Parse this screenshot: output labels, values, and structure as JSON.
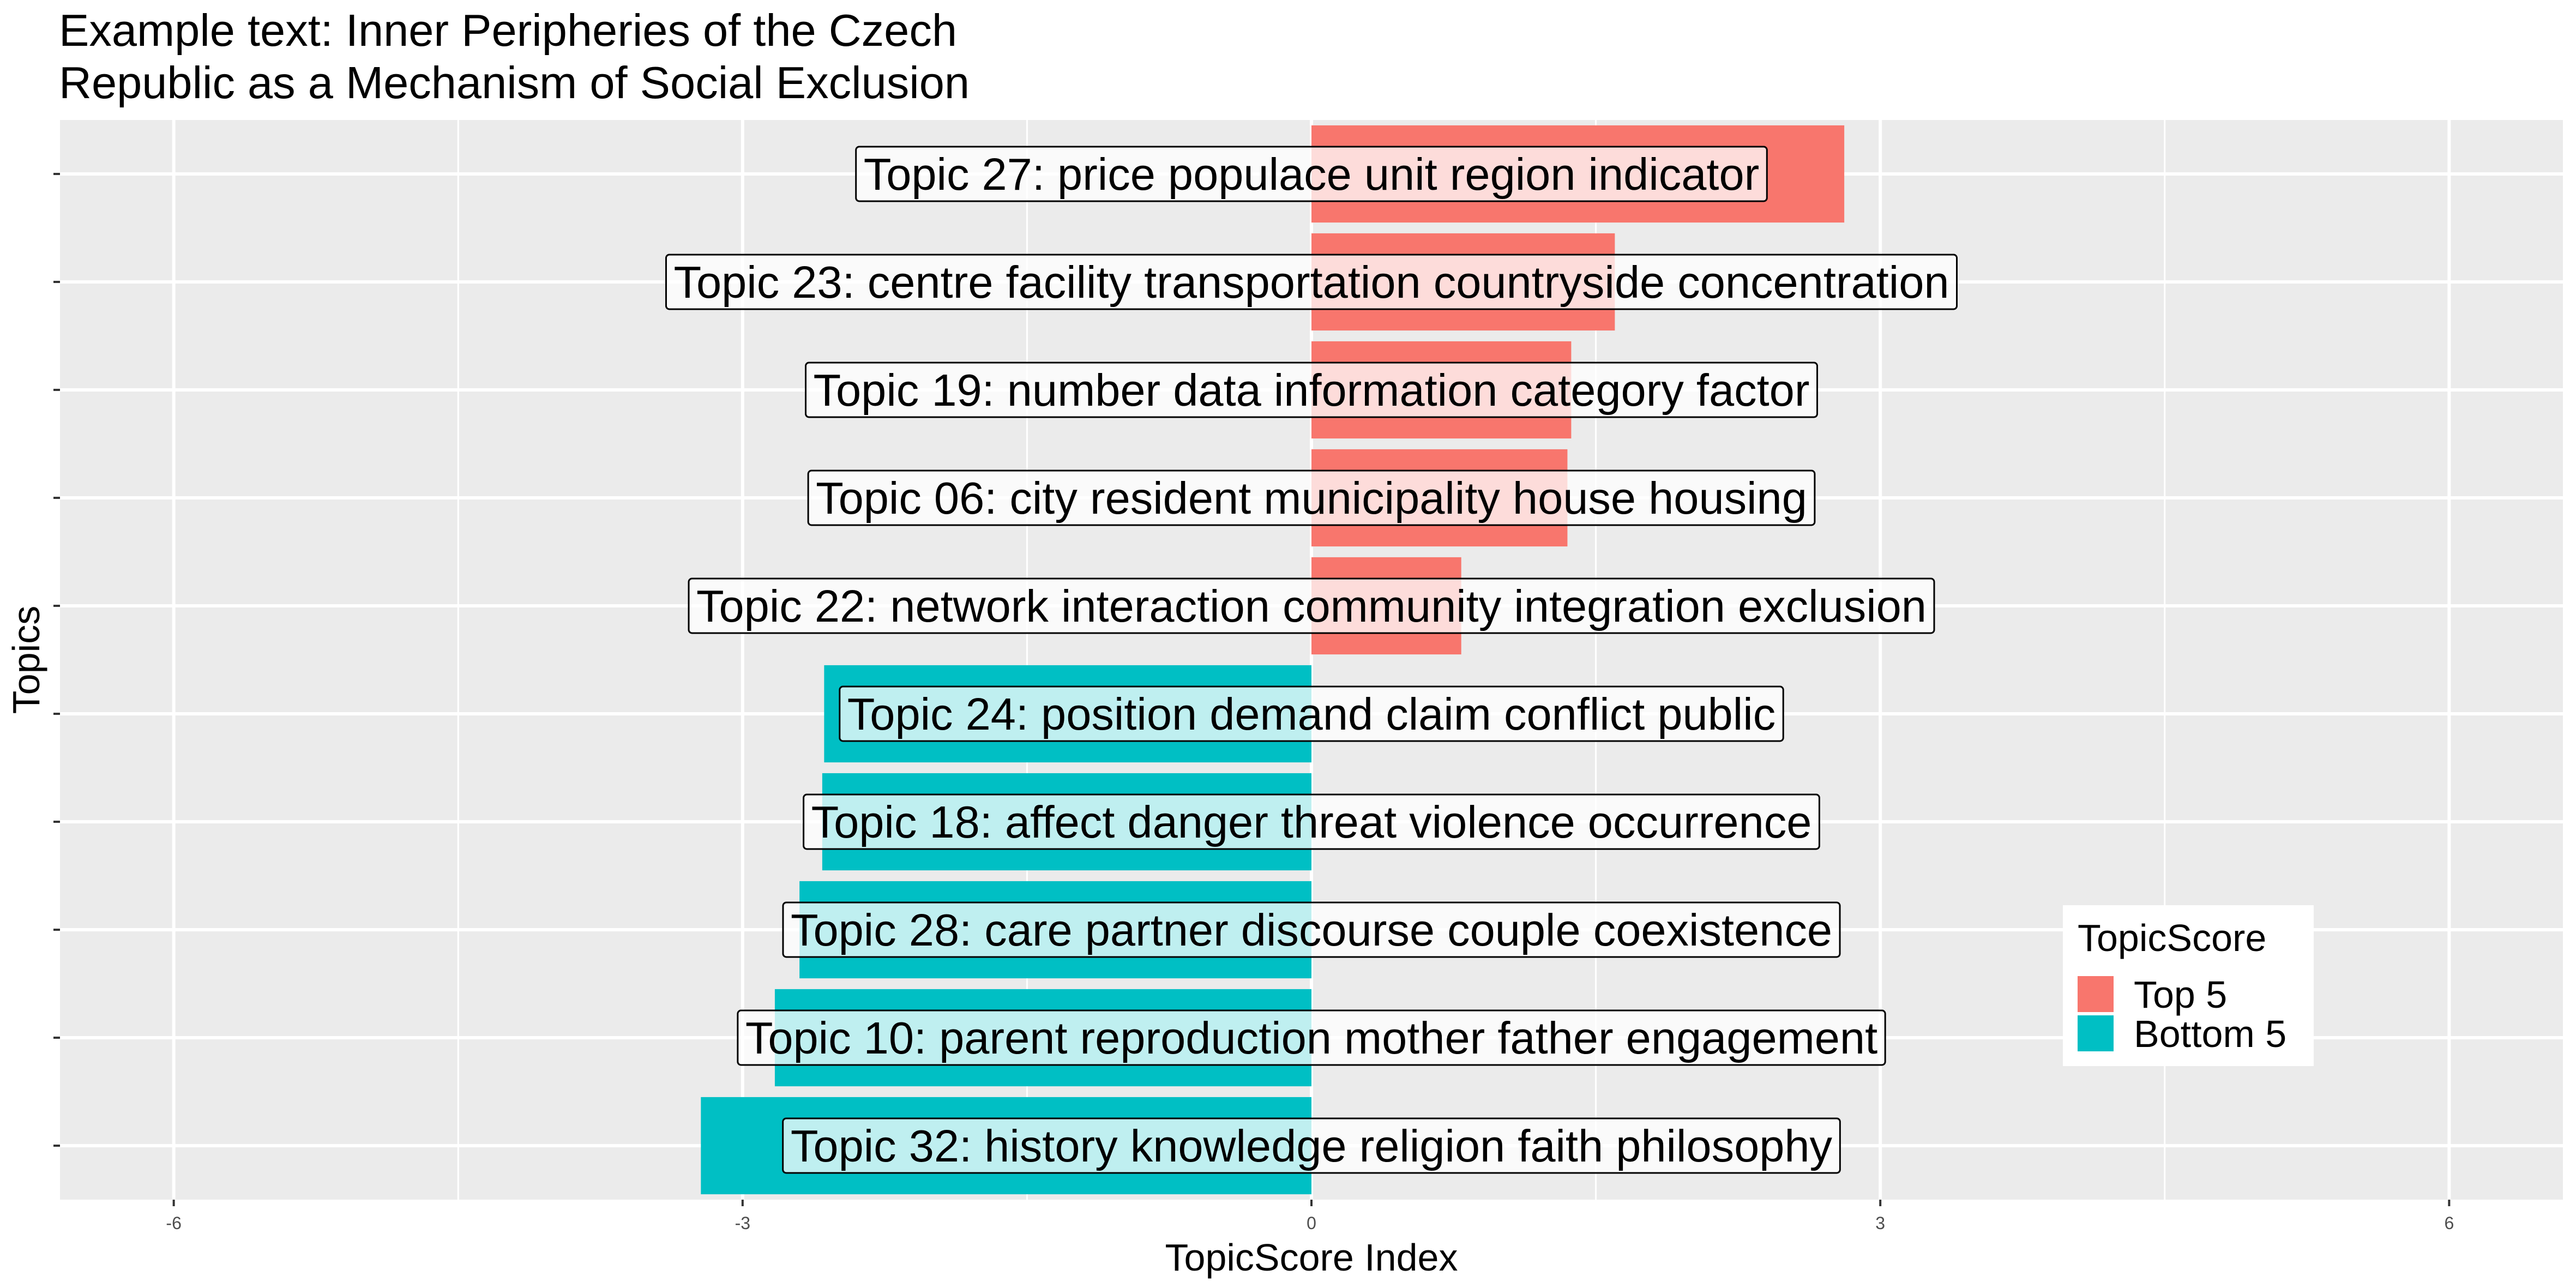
{
  "chart_data": {
    "type": "bar",
    "orientation": "horizontal",
    "title_lines": [
      "Example text: Inner Peripheries of the Czech",
      "Republic as a Mechanism of Social Exclusion"
    ],
    "xlabel": "TopicScore Index",
    "ylabel": "Topics",
    "xlim": [
      -6.6,
      6.6
    ],
    "x_ticks": [
      -6,
      -3,
      0,
      3,
      6
    ],
    "x_tick_labels": [
      "-6",
      "-3",
      "0",
      "3",
      "6"
    ],
    "grid": true,
    "legend": {
      "title": "TopicScore",
      "position": "bottom-right",
      "items": [
        {
          "label": "Top 5",
          "color": "#F8766D"
        },
        {
          "label": "Bottom 5",
          "color": "#00BFC4"
        }
      ]
    },
    "colors": {
      "top": "#F8766D",
      "bottom": "#00BFC4",
      "panel": "#EBEBEB",
      "grid": "#FFFFFF"
    },
    "bars": [
      {
        "label": "Topic 27: price populace unit region indicator",
        "value": 2.81,
        "group": "top"
      },
      {
        "label": "Topic 23: centre facility transportation countryside concentration",
        "value": 1.6,
        "group": "top"
      },
      {
        "label": "Topic 19: number data information category factor",
        "value": 1.37,
        "group": "top"
      },
      {
        "label": "Topic 06: city resident municipality house housing",
        "value": 1.35,
        "group": "top"
      },
      {
        "label": "Topic 22: network interaction community integration exclusion",
        "value": 0.79,
        "group": "top"
      },
      {
        "label": "Topic 24: position demand claim conflict public",
        "value": -2.57,
        "group": "bottom"
      },
      {
        "label": "Topic 18: affect danger threat violence occurrence",
        "value": -2.58,
        "group": "bottom"
      },
      {
        "label": "Topic 28: care partner discourse couple coexistence",
        "value": -2.7,
        "group": "bottom"
      },
      {
        "label": "Topic 10: parent reproduction mother father engagement",
        "value": -2.83,
        "group": "bottom"
      },
      {
        "label": "Topic 32: history knowledge religion faith philosophy",
        "value": -3.22,
        "group": "bottom"
      }
    ]
  }
}
